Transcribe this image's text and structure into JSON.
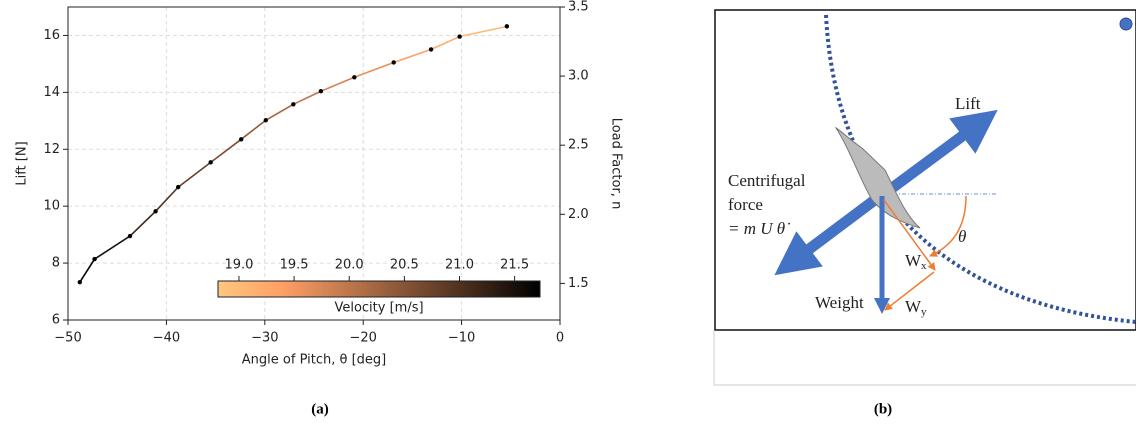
{
  "chart_data": {
    "type": "line",
    "x_label": "Angle of Pitch, θ [deg]",
    "y_label": "Lift [N]",
    "y2_label": "Load Factor, n",
    "x": [
      -48.8,
      -47.3,
      -43.7,
      -41.1,
      -38.8,
      -35.5,
      -32.4,
      -29.9,
      -27.1,
      -24.3,
      -20.9,
      -16.9,
      -13.1,
      -10.2,
      -5.4
    ],
    "series": [
      {
        "name": "Lift",
        "color": "#000000",
        "values": [
          7.33,
          8.14,
          8.95,
          9.82,
          10.67,
          11.54,
          12.35,
          13.02,
          13.58,
          14.04,
          14.53,
          15.05,
          15.51,
          15.96,
          16.32
        ]
      }
    ],
    "velocity": [
      21.7,
      21.5,
      21.2,
      21.0,
      20.8,
      20.6,
      20.4,
      20.2,
      20.0,
      19.8,
      19.6,
      19.4,
      19.2,
      19.0,
      18.85
    ],
    "colormap": "copper_r",
    "colorbar_label": "Velocity [m/s]",
    "clim": [
      18.81,
      21.73
    ],
    "cticks": [
      {
        "value": 19.0,
        "label": "19.0"
      },
      {
        "value": 19.5,
        "label": "19.5"
      },
      {
        "value": 20.0,
        "label": "20.0"
      },
      {
        "value": 20.5,
        "label": "20.5"
      },
      {
        "value": 21.0,
        "label": "21.0"
      },
      {
        "value": 21.5,
        "label": "21.5"
      }
    ],
    "xlim": [
      -50,
      0
    ],
    "xticks": [
      {
        "value": -50,
        "label": "−50"
      },
      {
        "value": -40,
        "label": "−40"
      },
      {
        "value": -30,
        "label": "−30"
      },
      {
        "value": -20,
        "label": "−20"
      },
      {
        "value": -10,
        "label": "−10"
      },
      0
    ],
    "ylim": [
      6,
      17
    ],
    "yticks": [
      6,
      8,
      10,
      12,
      14,
      16
    ],
    "y2lim": [
      1.235,
      3.5
    ],
    "y2ticks": [
      1.5,
      {
        "value": 2.0,
        "label": "2.0"
      },
      2.5,
      {
        "value": 3.0,
        "label": "3.0"
      },
      3.5
    ],
    "grid": true
  },
  "diagram": {
    "lift": "Lift",
    "centrifugal": [
      "Centrifugal",
      "force"
    ],
    "centrifugal_eq": "= m U θ̇",
    "theta": "θ",
    "weight": "Weight",
    "wx": {
      "base": "W",
      "sub": "x"
    },
    "wy": {
      "base": "W",
      "sub": "y"
    }
  },
  "captions": [
    "(a)",
    "(b)"
  ]
}
